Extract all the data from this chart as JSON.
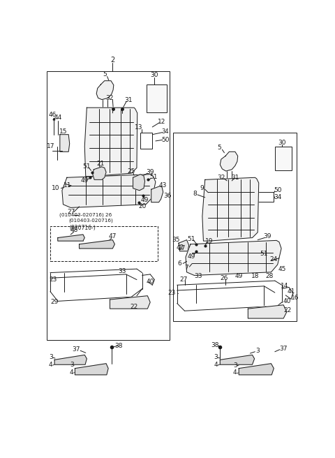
{
  "bg_color": "#ffffff",
  "line_color": "#1a1a1a",
  "fig_width": 4.8,
  "fig_height": 6.56,
  "dpi": 100,
  "seat_fill": "#e8e8e8",
  "seat_fill2": "#d8d8d8"
}
